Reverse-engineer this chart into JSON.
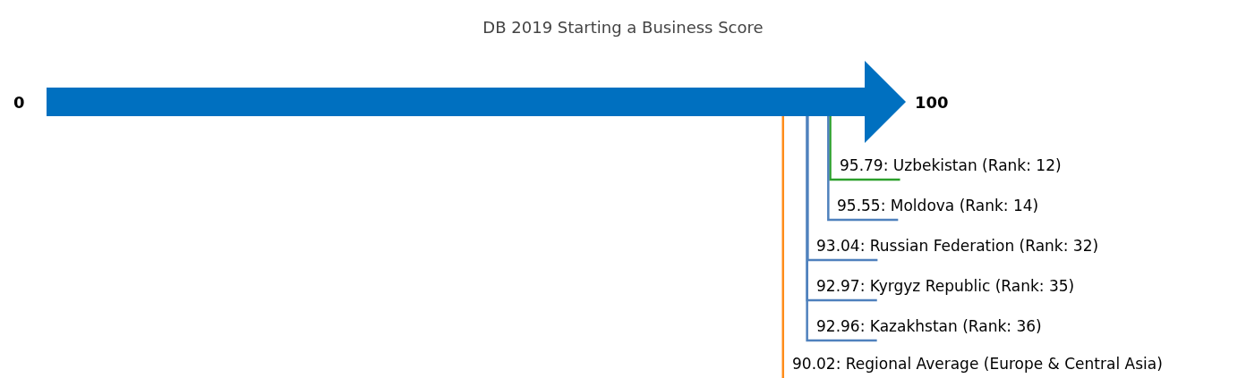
{
  "chart_data": {
    "type": "other",
    "title": "DB 2019 Starting a Business Score",
    "values": [
      95.79,
      95.55,
      93.04,
      92.97,
      92.96,
      90.02
    ],
    "value_labels": [
      "95.79: Uzbekistan (Rank: 12)",
      "95.55: Moldova (Rank: 14)",
      "93.04: Russian Federation (Rank: 32)",
      "92.97: Kyrgyz Republic (Rank: 35)",
      "92.96: Kazakhstan (Rank: 36)",
      "90.02: Regional Average (Europe & Central Asia)"
    ],
    "colors": [
      "#2ca02c",
      "#4f81bd",
      "#4f81bd",
      "#4f81bd",
      "#4f81bd",
      "#ff8c1a"
    ],
    "annotations": [
      "0",
      "100"
    ],
    "color": "#0070c0"
  }
}
